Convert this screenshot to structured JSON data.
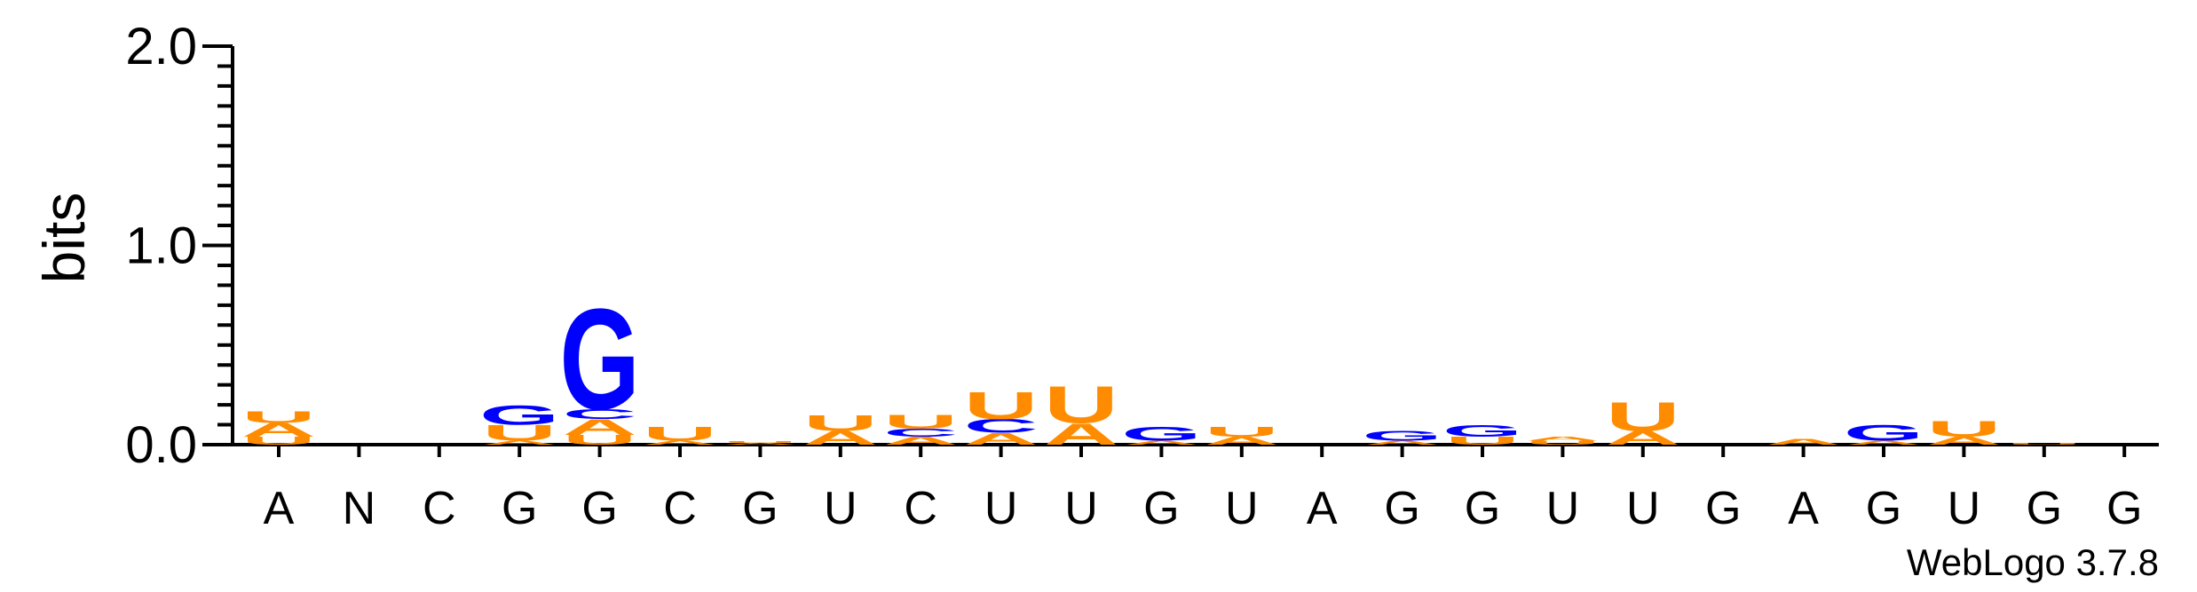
{
  "chart_data": {
    "type": "sequence-logo",
    "ylabel": "bits",
    "ylim": [
      0,
      2.0
    ],
    "yticks": [
      "0.0",
      "1.0",
      "2.0"
    ],
    "positions": [
      "A",
      "N",
      "C",
      "G",
      "G",
      "C",
      "G",
      "U",
      "C",
      "U",
      "U",
      "G",
      "U",
      "A",
      "G",
      "G",
      "U",
      "U",
      "G",
      "A",
      "G",
      "U",
      "G",
      "G"
    ],
    "stacks": [
      [
        {
          "letter": "U",
          "height": 0.04
        },
        {
          "letter": "A",
          "height": 0.07
        },
        {
          "letter": "U",
          "height": 0.06
        }
      ],
      [],
      [],
      [
        {
          "letter": "A",
          "height": 0.02
        },
        {
          "letter": "U",
          "height": 0.08
        },
        {
          "letter": "G",
          "height": 0.1
        }
      ],
      [
        {
          "letter": "U",
          "height": 0.05
        },
        {
          "letter": "A",
          "height": 0.08
        },
        {
          "letter": "C",
          "height": 0.05
        },
        {
          "letter": "G",
          "height": 0.52
        }
      ],
      [
        {
          "letter": "A",
          "height": 0.02
        },
        {
          "letter": "U",
          "height": 0.07
        }
      ],
      [
        {
          "letter": "A",
          "height": 0.01
        },
        {
          "letter": "U",
          "height": 0.01
        }
      ],
      [
        {
          "letter": "A",
          "height": 0.07
        },
        {
          "letter": "U",
          "height": 0.08
        }
      ],
      [
        {
          "letter": "A",
          "height": 0.04
        },
        {
          "letter": "C",
          "height": 0.04
        },
        {
          "letter": "U",
          "height": 0.07
        }
      ],
      [
        {
          "letter": "A",
          "height": 0.06
        },
        {
          "letter": "C",
          "height": 0.07
        },
        {
          "letter": "U",
          "height": 0.14
        }
      ],
      [
        {
          "letter": "A",
          "height": 0.11
        },
        {
          "letter": "U",
          "height": 0.19
        }
      ],
      [
        {
          "letter": "A",
          "height": 0.02
        },
        {
          "letter": "G",
          "height": 0.07
        }
      ],
      [
        {
          "letter": "A",
          "height": 0.04
        },
        {
          "letter": "U",
          "height": 0.05
        }
      ],
      [],
      [
        {
          "letter": "A",
          "height": 0.02
        },
        {
          "letter": "G",
          "height": 0.05
        }
      ],
      [
        {
          "letter": "U",
          "height": 0.04
        },
        {
          "letter": "G",
          "height": 0.06
        }
      ],
      [
        {
          "letter": "U",
          "height": 0.02
        },
        {
          "letter": "A",
          "height": 0.02
        }
      ],
      [
        {
          "letter": "A",
          "height": 0.07
        },
        {
          "letter": "U",
          "height": 0.15
        }
      ],
      [],
      [
        {
          "letter": "A",
          "height": 0.03
        }
      ],
      [
        {
          "letter": "A",
          "height": 0.02
        },
        {
          "letter": "G",
          "height": 0.08
        }
      ],
      [
        {
          "letter": "A",
          "height": 0.04
        },
        {
          "letter": "U",
          "height": 0.08
        }
      ],
      [
        {
          "letter": "U",
          "height": 0.01
        }
      ],
      []
    ]
  },
  "colors": {
    "A": "#ff8c00",
    "U": "#ff8c00",
    "G": "#0000ff",
    "C": "#0000ff",
    "axis": "#000000"
  },
  "credit": "WebLogo 3.7.8"
}
